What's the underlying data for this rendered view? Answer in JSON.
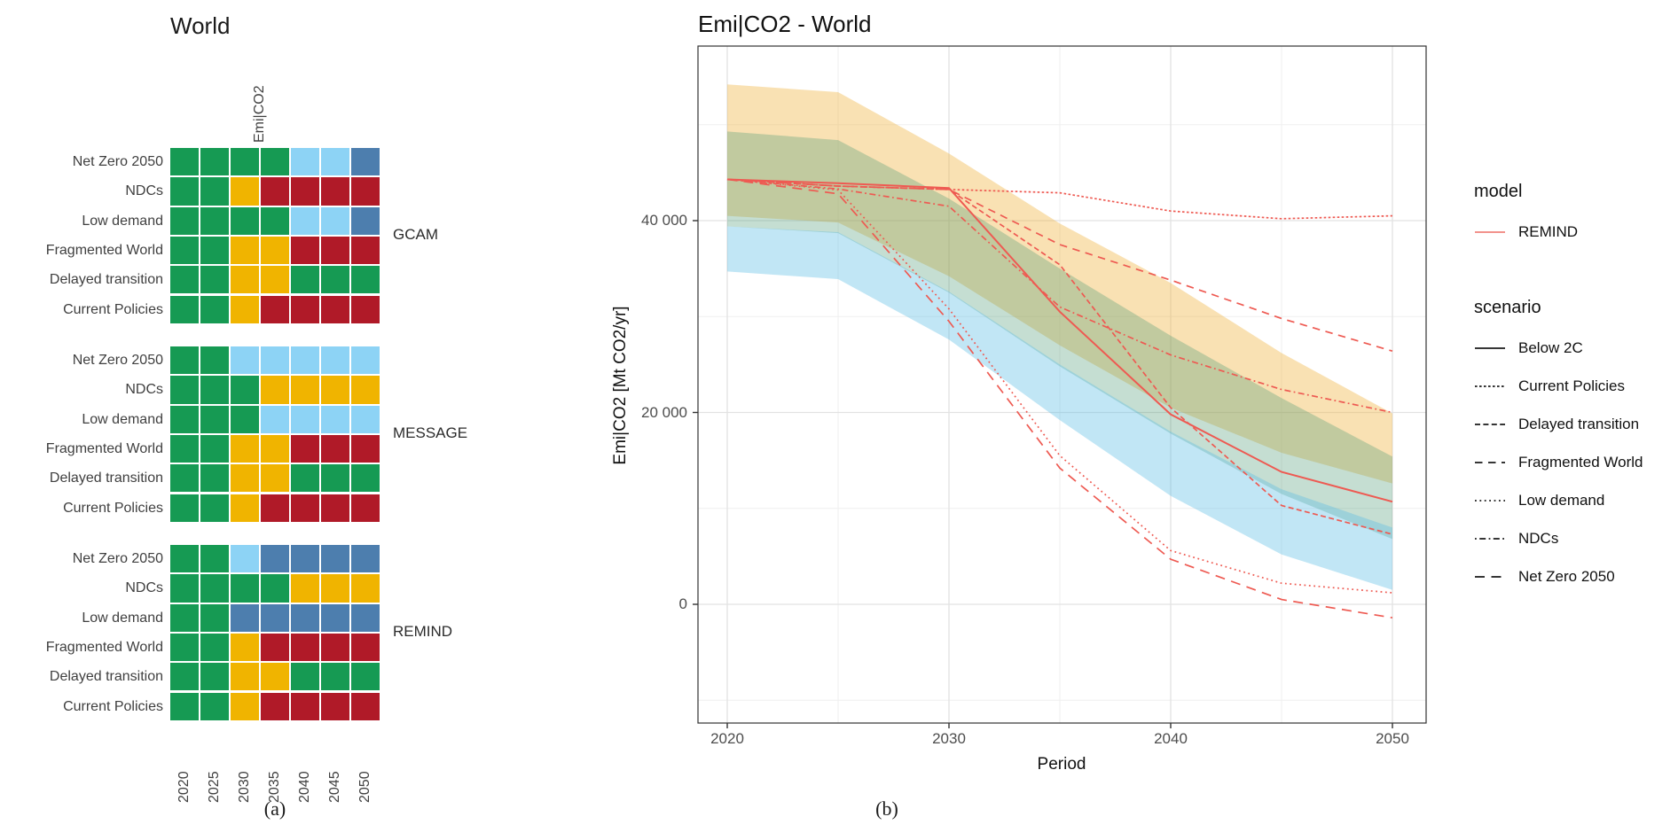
{
  "chart_data": [
    {
      "type": "heatmap",
      "title": "World",
      "column_header": "Emi|CO2",
      "caption": "(a)",
      "years": [
        "2020",
        "2025",
        "2030",
        "2035",
        "2040",
        "2045",
        "2050"
      ],
      "scenarios": [
        "Net Zero 2050",
        "NDCs",
        "Low demand",
        "Fragmented World",
        "Delayed transition",
        "Current Policies"
      ],
      "models": [
        "GCAM",
        "MESSAGE",
        "REMIND"
      ],
      "color_key": {
        "G": "#169a53",
        "Y": "#f0b400",
        "R": "#b01a28",
        "B": "#8dd3f5",
        "S": "#4d7eae"
      },
      "color_meaning": {
        "G": "green",
        "Y": "yellow",
        "R": "red",
        "B": "light-blue",
        "S": "steel-blue"
      },
      "cells": {
        "GCAM": [
          "GGGGBBS",
          "GGYRRRR",
          "GGGGBBS",
          "GGYYRRR",
          "GGYYGGG",
          "GGYRRRR"
        ],
        "MESSAGE": [
          "GGBBBBB",
          "GGGYYYY",
          "GGGBBBB",
          "GGYYRRR",
          "GGYYGGG",
          "GGYRRRR"
        ],
        "REMIND": [
          "GGBSSSS",
          "GGGGYYY",
          "GGSSSSS",
          "GGYRRRR",
          "GGYYGGG",
          "GGYRRRR"
        ]
      }
    },
    {
      "type": "line",
      "title": "Emi|CO2 - World",
      "xlabel": "Period",
      "ylabel": "Emi|CO2 [Mt CO2/yr]",
      "caption": "(b)",
      "x": [
        2020,
        2025,
        2030,
        2035,
        2040,
        2045,
        2050
      ],
      "x_tick_labels": [
        "2020",
        "2030",
        "2040",
        "2050"
      ],
      "y_tick_labels": [
        "0",
        "20 000",
        "40 000"
      ],
      "y_tick_values": [
        0,
        20000,
        40000
      ],
      "ylim": [
        -12400,
        58200
      ],
      "grid": true,
      "line_color": "#ee5a52",
      "legend_model_color": "#f0837b",
      "series": [
        {
          "name": "Below 2C",
          "dash": "solid",
          "values": [
            44300,
            43900,
            43400,
            30500,
            19800,
            13800,
            10700
          ]
        },
        {
          "name": "Current Policies",
          "dash": "dotted-dense",
          "values": [
            44300,
            43600,
            43250,
            42900,
            41000,
            40200,
            40500
          ]
        },
        {
          "name": "Delayed transition",
          "dash": "dashed",
          "values": [
            44300,
            43600,
            43250,
            35400,
            20500,
            10300,
            7300
          ]
        },
        {
          "name": "Fragmented World",
          "dash": "longdash",
          "values": [
            44300,
            43600,
            43250,
            37500,
            33800,
            29800,
            26400
          ]
        },
        {
          "name": "Low demand",
          "dash": "dotted",
          "values": [
            44300,
            43200,
            30800,
            15500,
            5600,
            2200,
            1200
          ]
        },
        {
          "name": "NDCs",
          "dash": "dashdot",
          "values": [
            44300,
            43300,
            41500,
            31000,
            26000,
            22400,
            20000
          ]
        },
        {
          "name": "Net Zero 2050",
          "dash": "longdash-gap",
          "values": [
            44300,
            42800,
            29500,
            14200,
            4700,
            500,
            -1400
          ]
        }
      ],
      "ribbons": [
        {
          "name": "yellow-band",
          "color": "#f0b84a",
          "opacity": 0.42,
          "top": [
            54200,
            53400,
            47000,
            39700,
            33500,
            26200,
            19900
          ],
          "bottom": [
            40500,
            39800,
            34200,
            27000,
            20500,
            15800,
            12600
          ]
        },
        {
          "name": "green-band",
          "color": "#4e9b77",
          "opacity": 0.33,
          "top": [
            49300,
            48400,
            42300,
            35000,
            28000,
            21500,
            15400
          ],
          "bottom": [
            39400,
            38700,
            32500,
            24800,
            17800,
            11500,
            6800
          ]
        },
        {
          "name": "blue-band",
          "color": "#5bbde4",
          "opacity": 0.38,
          "top": [
            39400,
            38800,
            32600,
            25000,
            18000,
            12000,
            8000
          ],
          "bottom": [
            34700,
            33900,
            27600,
            19200,
            11300,
            5200,
            1500
          ]
        }
      ],
      "legend": {
        "model_header": "model",
        "model_items": [
          {
            "label": "REMIND"
          }
        ],
        "scenario_header": "scenario",
        "scenario_items": [
          "Below 2C",
          "Current Policies",
          "Delayed transition",
          "Fragmented World",
          "Low demand",
          "NDCs",
          "Net Zero 2050"
        ]
      }
    }
  ]
}
